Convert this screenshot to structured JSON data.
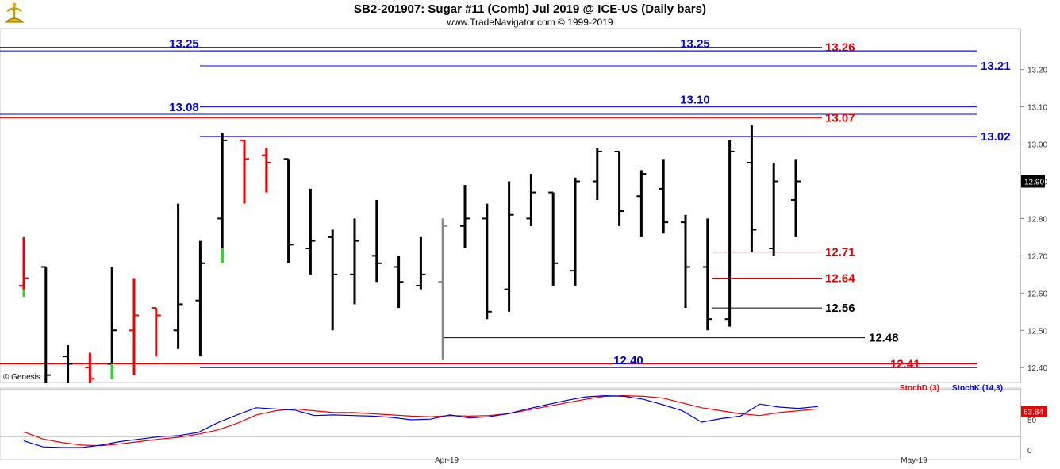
{
  "header": {
    "title": "SB2-201907:  Sugar #11 (Comb) Jul 2019 @ ICE-US  (Daily bars)",
    "subtitle": "www.TradeNavigator.com © 1999-2019"
  },
  "watermark": "© Genesis",
  "colors": {
    "support_red": "#e00000",
    "level_blue": "#0000dd",
    "level_black": "#000000",
    "up_bar": "#000000",
    "red_bar": "#ee0000",
    "green_tick": "#22dd22",
    "grey_bar": "#888888",
    "stoch_d": "#ee0000",
    "stoch_k": "#0000dd"
  },
  "chart_data": [
    {
      "type": "ohlc",
      "title": "SB2-201907:  Sugar #11 (Comb) Jul 2019 @ ICE-US  (Daily bars)",
      "ylim": [
        12.36,
        13.31
      ],
      "y_ticks": [
        "13.20",
        "13.10",
        "13.00",
        "12.90",
        "12.80",
        "12.70",
        "12.60",
        "12.50",
        "12.40"
      ],
      "last_price_label": "12.90",
      "x_labels": [
        "Apr-19",
        "May-19"
      ],
      "bars": [
        {
          "o": 12.62,
          "h": 12.75,
          "l": 12.59,
          "c": 12.64,
          "color": "red"
        },
        {
          "o": 12.67,
          "h": 12.67,
          "l": 12.36,
          "c": 12.38,
          "color": "black"
        },
        {
          "o": 12.43,
          "h": 12.46,
          "l": 12.36,
          "c": 12.41,
          "color": "black"
        },
        {
          "o": 12.4,
          "h": 12.44,
          "l": 12.36,
          "c": 12.37,
          "color": "red"
        },
        {
          "o": 12.41,
          "h": 12.67,
          "l": 12.37,
          "c": 12.5,
          "color": "black"
        },
        {
          "o": 12.5,
          "h": 12.64,
          "l": 12.38,
          "c": 12.54,
          "color": "red"
        },
        {
          "o": 12.56,
          "h": 12.56,
          "l": 12.43,
          "c": 12.54,
          "color": "red"
        },
        {
          "o": 12.5,
          "h": 12.84,
          "l": 12.45,
          "c": 12.57,
          "color": "black"
        },
        {
          "o": 12.58,
          "h": 12.74,
          "l": 12.43,
          "c": 12.68,
          "color": "black"
        },
        {
          "o": 12.8,
          "h": 13.03,
          "l": 12.68,
          "c": 13.01,
          "color": "black"
        },
        {
          "o": 13.01,
          "h": 13.01,
          "l": 12.84,
          "c": 12.96,
          "color": "red"
        },
        {
          "o": 12.97,
          "h": 12.99,
          "l": 12.87,
          "c": 12.95,
          "color": "red"
        },
        {
          "o": 12.96,
          "h": 12.96,
          "l": 12.68,
          "c": 12.73,
          "color": "black"
        },
        {
          "o": 12.72,
          "h": 12.88,
          "l": 12.65,
          "c": 12.74,
          "color": "black"
        },
        {
          "o": 12.75,
          "h": 12.77,
          "l": 12.5,
          "c": 12.65,
          "color": "black"
        },
        {
          "o": 12.65,
          "h": 12.8,
          "l": 12.57,
          "c": 12.74,
          "color": "black"
        },
        {
          "o": 12.7,
          "h": 12.85,
          "l": 12.63,
          "c": 12.68,
          "color": "black"
        },
        {
          "o": 12.67,
          "h": 12.7,
          "l": 12.56,
          "c": 12.63,
          "color": "black"
        },
        {
          "o": 12.62,
          "h": 12.75,
          "l": 12.61,
          "c": 12.65,
          "color": "black"
        },
        {
          "o": 12.63,
          "h": 12.8,
          "l": 12.42,
          "c": 12.78,
          "color": "grey"
        },
        {
          "o": 12.78,
          "h": 12.89,
          "l": 12.72,
          "c": 12.8,
          "color": "black"
        },
        {
          "o": 12.8,
          "h": 12.84,
          "l": 12.53,
          "c": 12.55,
          "color": "black"
        },
        {
          "o": 12.61,
          "h": 12.9,
          "l": 12.55,
          "c": 12.81,
          "color": "black"
        },
        {
          "o": 12.8,
          "h": 12.92,
          "l": 12.78,
          "c": 12.87,
          "color": "black"
        },
        {
          "o": 12.87,
          "h": 12.87,
          "l": 12.62,
          "c": 12.68,
          "color": "black"
        },
        {
          "o": 12.66,
          "h": 12.91,
          "l": 12.62,
          "c": 12.9,
          "color": "black"
        },
        {
          "o": 12.9,
          "h": 12.99,
          "l": 12.85,
          "c": 12.98,
          "color": "black"
        },
        {
          "o": 12.98,
          "h": 12.98,
          "l": 12.78,
          "c": 12.82,
          "color": "black"
        },
        {
          "o": 12.86,
          "h": 12.93,
          "l": 12.75,
          "c": 12.92,
          "color": "black"
        },
        {
          "o": 12.88,
          "h": 12.96,
          "l": 12.76,
          "c": 12.79,
          "color": "black"
        },
        {
          "o": 12.79,
          "h": 12.81,
          "l": 12.56,
          "c": 12.67,
          "color": "black"
        },
        {
          "o": 12.67,
          "h": 12.8,
          "l": 12.5,
          "c": 12.53,
          "color": "black"
        },
        {
          "o": 12.53,
          "h": 13.01,
          "l": 12.51,
          "c": 12.98,
          "color": "black"
        },
        {
          "o": 12.95,
          "h": 13.05,
          "l": 12.71,
          "c": 12.77,
          "color": "black"
        },
        {
          "o": 12.72,
          "h": 12.95,
          "l": 12.7,
          "c": 12.9,
          "color": "black"
        },
        {
          "o": 12.85,
          "h": 12.96,
          "l": 12.75,
          "c": 12.9,
          "color": "black"
        }
      ],
      "levels": [
        {
          "text": "13.26",
          "value": 13.26,
          "color": "red",
          "kind": "full"
        },
        {
          "text": "13.25",
          "value": 13.25,
          "color": "blue",
          "kind": "full"
        },
        {
          "text": "13.25",
          "value": 13.25,
          "color": "blue",
          "kind": "mid"
        },
        {
          "text": "13.21",
          "value": 13.21,
          "color": "blue",
          "kind": "right"
        },
        {
          "text": "13.10",
          "value": 13.1,
          "color": "blue",
          "kind": "mid"
        },
        {
          "text": "13.08",
          "value": 13.08,
          "color": "blue",
          "kind": "full"
        },
        {
          "text": "13.07",
          "value": 13.07,
          "color": "red",
          "kind": "full"
        },
        {
          "text": "13.02",
          "value": 13.02,
          "color": "blue",
          "kind": "right"
        },
        {
          "text": "12.71",
          "value": 12.71,
          "color": "red",
          "kind": "short"
        },
        {
          "text": "12.64",
          "value": 12.64,
          "color": "red",
          "kind": "short"
        },
        {
          "text": "12.56",
          "value": 12.56,
          "color": "black",
          "kind": "short"
        },
        {
          "text": "12.48",
          "value": 12.48,
          "color": "black",
          "kind": "long"
        },
        {
          "text": "12.41",
          "value": 12.41,
          "color": "red",
          "kind": "full"
        },
        {
          "text": "12.40",
          "value": 12.4,
          "color": "blue",
          "kind": "mid"
        }
      ]
    },
    {
      "type": "line",
      "legend": [
        "StochD (3)",
        "StochK (14,3)"
      ],
      "ylim": [
        0,
        100
      ],
      "y_ticks": [
        "50",
        "0"
      ],
      "last_value_label": "63.84",
      "series": [
        {
          "name": "StochD (3)",
          "values": [
            30,
            18,
            12,
            8,
            7,
            10,
            14,
            18,
            21,
            26,
            33,
            44,
            58,
            65,
            68,
            65,
            62,
            62,
            60,
            58,
            56,
            55,
            57,
            56,
            57,
            60,
            66,
            72,
            78,
            84,
            89,
            90,
            89,
            86,
            78,
            70,
            65,
            60,
            57,
            62,
            65,
            68
          ]
        },
        {
          "name": "StochK (14,3)",
          "values": [
            15,
            5,
            4,
            4,
            8,
            14,
            18,
            22,
            24,
            29,
            45,
            58,
            70,
            68,
            66,
            57,
            58,
            57,
            56,
            54,
            50,
            51,
            58,
            53,
            55,
            60,
            68,
            75,
            82,
            88,
            90,
            89,
            84,
            75,
            65,
            46,
            52,
            56,
            76,
            71,
            69,
            72
          ]
        }
      ]
    }
  ]
}
